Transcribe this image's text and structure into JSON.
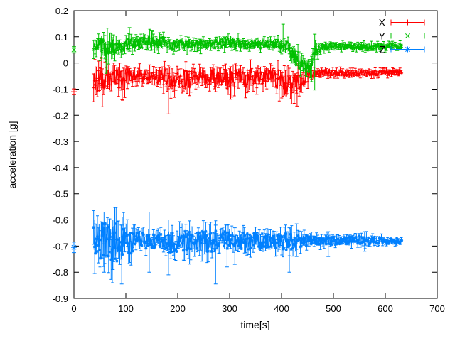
{
  "chart_data": {
    "type": "line",
    "title": "",
    "xlabel": "time[s]",
    "ylabel": "acceleration [g]",
    "xlim": [
      0,
      700
    ],
    "ylim": [
      -0.9,
      0.2
    ],
    "xticks": [
      "0",
      "100",
      "200",
      "300",
      "400",
      "500",
      "600",
      "700"
    ],
    "xtick_values": [
      0,
      100,
      200,
      300,
      400,
      500,
      600,
      700
    ],
    "yticks": [
      "0.2",
      "0.1",
      "0",
      "-0.1",
      "-0.2",
      "-0.3",
      "-0.4",
      "-0.5",
      "-0.6",
      "-0.7",
      "-0.8",
      "-0.9"
    ],
    "ytick_values": [
      0.2,
      0.1,
      0,
      -0.1,
      -0.2,
      -0.3,
      -0.4,
      -0.5,
      -0.6,
      -0.7,
      -0.8,
      -0.9
    ],
    "grid": false,
    "legend_position": "top-right",
    "background": "#ffffff",
    "axis_color": "#000000",
    "series": [
      {
        "name": "X",
        "color": "#ff0000",
        "marker": "+",
        "seed": 101,
        "first_point": {
          "t": 0,
          "value": -0.11,
          "err": 0.011
        },
        "data_start": 38,
        "data_end": 632,
        "envelope": [
          [
            38,
            -0.055,
            0.055
          ],
          [
            60,
            -0.06,
            0.05
          ],
          [
            75,
            -0.05,
            0.035
          ],
          [
            95,
            -0.065,
            0.05
          ],
          [
            110,
            -0.05,
            0.025
          ],
          [
            150,
            -0.048,
            0.022
          ],
          [
            175,
            -0.055,
            0.035
          ],
          [
            185,
            -0.06,
            0.045
          ],
          [
            200,
            -0.055,
            0.03
          ],
          [
            215,
            -0.065,
            0.045
          ],
          [
            232,
            -0.05,
            0.028
          ],
          [
            252,
            -0.048,
            0.025
          ],
          [
            272,
            -0.06,
            0.035
          ],
          [
            288,
            -0.05,
            0.03
          ],
          [
            302,
            -0.075,
            0.045
          ],
          [
            318,
            -0.05,
            0.03
          ],
          [
            332,
            -0.07,
            0.045
          ],
          [
            348,
            -0.05,
            0.028
          ],
          [
            362,
            -0.055,
            0.03
          ],
          [
            378,
            -0.045,
            0.028
          ],
          [
            392,
            -0.065,
            0.04
          ],
          [
            408,
            -0.085,
            0.045
          ],
          [
            423,
            -0.08,
            0.04
          ],
          [
            438,
            -0.07,
            0.035
          ],
          [
            448,
            -0.055,
            0.03
          ],
          [
            458,
            -0.04,
            0.015
          ],
          [
            475,
            -0.038,
            0.012
          ],
          [
            632,
            -0.037,
            0.011
          ]
        ],
        "spikes": [
          {
            "t": 182,
            "lo": -0.195,
            "hi": -0.04
          },
          {
            "t": 93,
            "lo": -0.14,
            "hi": -0.03
          },
          {
            "t": 352,
            "lo": -0.12,
            "hi": -0.02
          },
          {
            "t": 430,
            "lo": -0.165,
            "hi": -0.05
          }
        ]
      },
      {
        "name": "Y",
        "color": "#00c000",
        "marker": "x",
        "seed": 202,
        "first_point": {
          "t": 0,
          "value": 0.05,
          "err": 0.012
        },
        "data_start": 38,
        "data_end": 632,
        "envelope": [
          [
            38,
            0.075,
            0.032
          ],
          [
            55,
            0.07,
            0.035
          ],
          [
            62,
            0.05,
            0.045
          ],
          [
            72,
            0.045,
            0.04
          ],
          [
            82,
            0.065,
            0.028
          ],
          [
            100,
            0.07,
            0.02
          ],
          [
            130,
            0.075,
            0.022
          ],
          [
            150,
            0.08,
            0.025
          ],
          [
            172,
            0.08,
            0.022
          ],
          [
            185,
            0.07,
            0.018
          ],
          [
            230,
            0.072,
            0.016
          ],
          [
            260,
            0.07,
            0.015
          ],
          [
            298,
            0.08,
            0.02
          ],
          [
            315,
            0.078,
            0.018
          ],
          [
            340,
            0.07,
            0.015
          ],
          [
            370,
            0.072,
            0.016
          ],
          [
            398,
            0.07,
            0.018
          ],
          [
            415,
            0.055,
            0.025
          ],
          [
            432,
            0.01,
            0.03
          ],
          [
            448,
            -0.025,
            0.025
          ],
          [
            456,
            -0.01,
            0.03
          ],
          [
            466,
            0.04,
            0.025
          ],
          [
            476,
            0.062,
            0.013
          ],
          [
            632,
            0.063,
            0.011
          ]
        ],
        "spikes": [
          {
            "t": 64,
            "lo": -0.035,
            "hi": 0.07
          },
          {
            "t": 107,
            "lo": 0.045,
            "hi": 0.135
          },
          {
            "t": 150,
            "lo": 0.05,
            "hi": 0.125
          },
          {
            "t": 403,
            "lo": 0.045,
            "hi": 0.148
          },
          {
            "t": 464,
            "lo": -0.103,
            "hi": 0.11
          }
        ]
      },
      {
        "name": "Z",
        "color": "#0080ff",
        "marker": "*",
        "seed": 303,
        "first_point": {
          "t": 0,
          "value": -0.705,
          "err": 0.02
        },
        "data_start": 38,
        "data_end": 632,
        "envelope": [
          [
            38,
            -0.685,
            0.065
          ],
          [
            55,
            -0.68,
            0.075
          ],
          [
            70,
            -0.69,
            0.07
          ],
          [
            85,
            -0.685,
            0.075
          ],
          [
            100,
            -0.68,
            0.055
          ],
          [
            115,
            -0.685,
            0.04
          ],
          [
            130,
            -0.68,
            0.03
          ],
          [
            150,
            -0.682,
            0.025
          ],
          [
            170,
            -0.68,
            0.03
          ],
          [
            185,
            -0.685,
            0.045
          ],
          [
            200,
            -0.68,
            0.04
          ],
          [
            220,
            -0.682,
            0.045
          ],
          [
            240,
            -0.68,
            0.04
          ],
          [
            260,
            -0.685,
            0.042
          ],
          [
            280,
            -0.68,
            0.038
          ],
          [
            300,
            -0.678,
            0.035
          ],
          [
            320,
            -0.68,
            0.032
          ],
          [
            340,
            -0.678,
            0.035
          ],
          [
            355,
            -0.68,
            0.03
          ],
          [
            375,
            -0.678,
            0.032
          ],
          [
            395,
            -0.68,
            0.03
          ],
          [
            412,
            -0.682,
            0.035
          ],
          [
            430,
            -0.68,
            0.025
          ],
          [
            450,
            -0.68,
            0.02
          ],
          [
            480,
            -0.681,
            0.016
          ],
          [
            520,
            -0.68,
            0.015
          ],
          [
            560,
            -0.679,
            0.018
          ],
          [
            600,
            -0.68,
            0.012
          ],
          [
            632,
            -0.68,
            0.01
          ]
        ],
        "spikes": [
          {
            "t": 40,
            "lo": -0.805,
            "hi": -0.6
          },
          {
            "t": 58,
            "lo": -0.8,
            "hi": -0.57
          },
          {
            "t": 75,
            "lo": -0.79,
            "hi": -0.6
          },
          {
            "t": 92,
            "lo": -0.845,
            "hi": -0.62
          },
          {
            "t": 145,
            "lo": -0.8,
            "hi": -0.57
          },
          {
            "t": 182,
            "lo": -0.81,
            "hi": -0.6
          },
          {
            "t": 273,
            "lo": -0.845,
            "hi": -0.62
          },
          {
            "t": 295,
            "lo": -0.78,
            "hi": -0.62
          },
          {
            "t": 310,
            "lo": -0.77,
            "hi": -0.63
          },
          {
            "t": 415,
            "lo": -0.8,
            "hi": -0.63
          },
          {
            "t": 429,
            "lo": -0.74,
            "hi": -0.615
          },
          {
            "t": 490,
            "lo": -0.74,
            "hi": -0.645
          },
          {
            "t": 560,
            "lo": -0.72,
            "hi": -0.645
          }
        ]
      }
    ]
  }
}
